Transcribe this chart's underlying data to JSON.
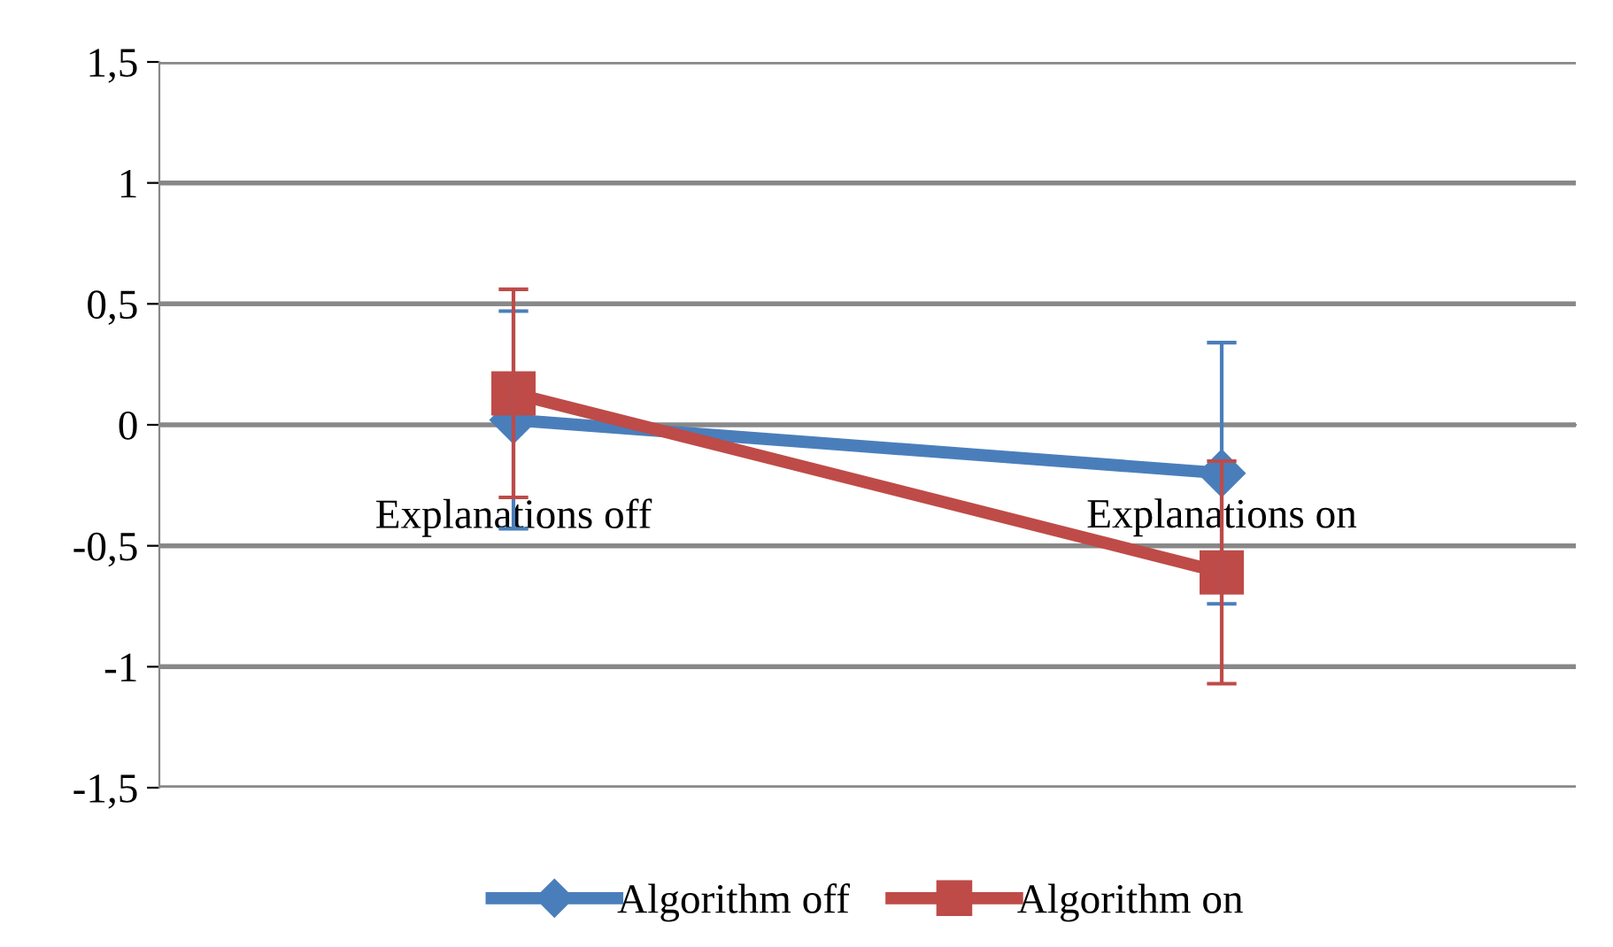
{
  "chart_data": {
    "type": "line",
    "categories": [
      "Explanations off",
      "Explanations on"
    ],
    "series": [
      {
        "name": "Algorithm off",
        "color": "#4a7ebb",
        "marker": "diamond",
        "values": [
          0.02,
          -0.2
        ],
        "errors": [
          0.45,
          0.54
        ]
      },
      {
        "name": "Algorithm on",
        "color": "#be4b48",
        "marker": "square",
        "values": [
          0.13,
          -0.61
        ],
        "errors": [
          0.43,
          0.46
        ]
      }
    ],
    "ylim": [
      -1.5,
      1.5
    ],
    "yticks": [
      {
        "value": -1.5,
        "label": "-1,5"
      },
      {
        "value": -1,
        "label": "-1"
      },
      {
        "value": -0.5,
        "label": "-0,5"
      },
      0,
      {
        "value": 0.5,
        "label": "0,5"
      },
      1,
      {
        "value": 1.5,
        "label": "1,5"
      }
    ],
    "grid": "y",
    "legend": "bottom",
    "line_style": "solid"
  }
}
